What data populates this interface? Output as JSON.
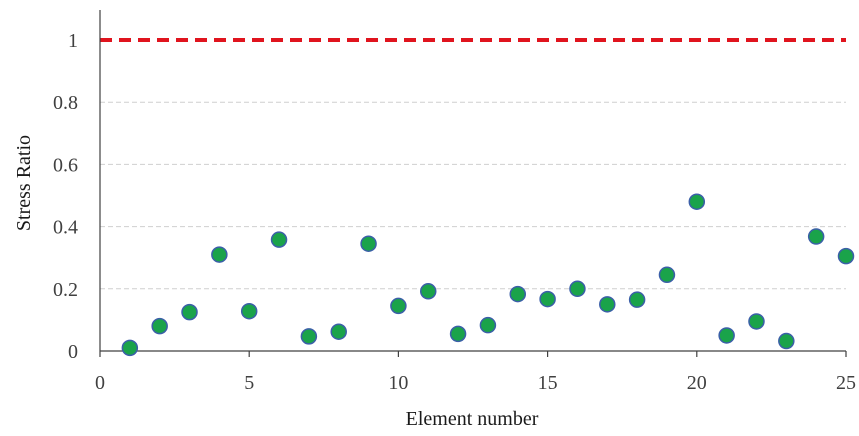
{
  "chart_data": {
    "type": "scatter",
    "xlabel": "Element number",
    "ylabel": "Stress Ratio",
    "xlim": [
      0,
      25
    ],
    "ylim": [
      0,
      1.1
    ],
    "x_ticks": [
      0,
      5,
      10,
      15,
      20,
      25
    ],
    "y_ticks": [
      0,
      0.2,
      0.4,
      0.6,
      0.8,
      1
    ],
    "x_tick_labels": [
      "0",
      "5",
      "10",
      "15",
      "20",
      "25"
    ],
    "y_tick_labels": [
      "0",
      "0.2",
      "0.4",
      "0.6",
      "0.8",
      "1"
    ],
    "grid": "horizontal dashed",
    "series": [
      {
        "marker_fill": "#1aa34a",
        "marker_edge": "#3b5fa8",
        "x": [
          1,
          2,
          3,
          4,
          5,
          6,
          7,
          8,
          9,
          10,
          11,
          12,
          13,
          14,
          15,
          16,
          17,
          18,
          19,
          20,
          21,
          22,
          23,
          24,
          25
        ],
        "y": [
          0.01,
          0.08,
          0.125,
          0.31,
          0.128,
          0.358,
          0.047,
          0.062,
          0.345,
          0.145,
          0.192,
          0.055,
          0.083,
          0.183,
          0.167,
          0.2,
          0.15,
          0.165,
          0.245,
          0.48,
          0.05,
          0.095,
          0.032,
          0.368,
          0.305
        ]
      }
    ],
    "reference_line": {
      "y": 1,
      "color": "#e0141e",
      "style": "dashed"
    }
  }
}
